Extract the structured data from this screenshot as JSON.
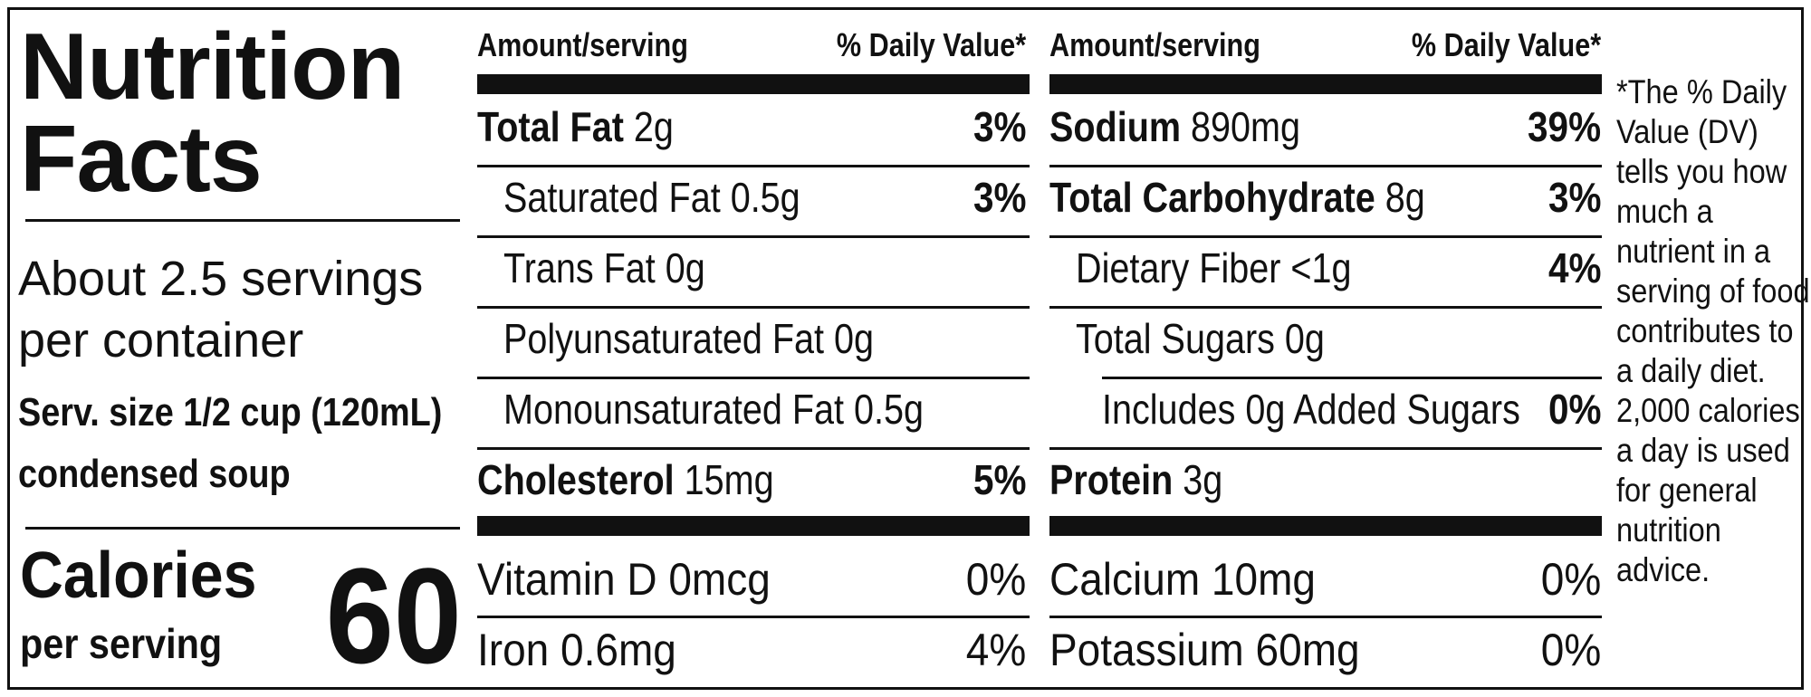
{
  "title": [
    "Nutrition",
    "Facts"
  ],
  "servings": [
    "About 2.5 servings",
    "per container"
  ],
  "serving_size": [
    "Serv. size 1/2 cup (120mL)",
    "condensed soup"
  ],
  "calories": {
    "label": "Calories",
    "sub": "per serving",
    "value": "60"
  },
  "headers": {
    "amount": "Amount/serving",
    "dv": "% Daily Value*"
  },
  "left_rows": [
    {
      "name": "Total Fat",
      "amount": " 2g",
      "dv": "3%"
    },
    {
      "name": "",
      "amount": "Saturated Fat 0.5g",
      "dv": "3%"
    },
    {
      "name": "",
      "amount": "Trans Fat 0g",
      "dv": ""
    },
    {
      "name": "",
      "amount": "Polyunsaturated Fat 0g",
      "dv": ""
    },
    {
      "name": "",
      "amount": "Monounsaturated Fat 0.5g",
      "dv": ""
    },
    {
      "name": "Cholesterol",
      "amount": " 15mg",
      "dv": "5%"
    }
  ],
  "right_rows": [
    {
      "name": "Sodium",
      "amount": " 890mg",
      "dv": "39%"
    },
    {
      "name": "Total Carbohydrate",
      "amount": " 8g",
      "dv": "3%"
    },
    {
      "name": "",
      "amount": "Dietary Fiber <1g",
      "dv": "4%"
    },
    {
      "name": "",
      "amount": "Total Sugars 0g",
      "dv": ""
    },
    {
      "name": "",
      "amount": "Includes 0g Added Sugars",
      "dv": "0%"
    },
    {
      "name": "Protein",
      "amount": " 3g",
      "dv": ""
    }
  ],
  "vitamins_left": [
    {
      "name": "Vitamin D 0mcg",
      "dv": "0%"
    },
    {
      "name": "Iron 0.6mg",
      "dv": "4%"
    }
  ],
  "vitamins_right": [
    {
      "name": "Calcium 10mg",
      "dv": "0%"
    },
    {
      "name": "Potassium 60mg",
      "dv": "0%"
    }
  ],
  "footnote": [
    "*The % Daily",
    "Value (DV)",
    "tells you how",
    "much a",
    "nutrient in a",
    "serving of food",
    "contributes to",
    "a daily diet.",
    "2,000 calories",
    "a day is used",
    "for general",
    "nutrition",
    "advice."
  ]
}
